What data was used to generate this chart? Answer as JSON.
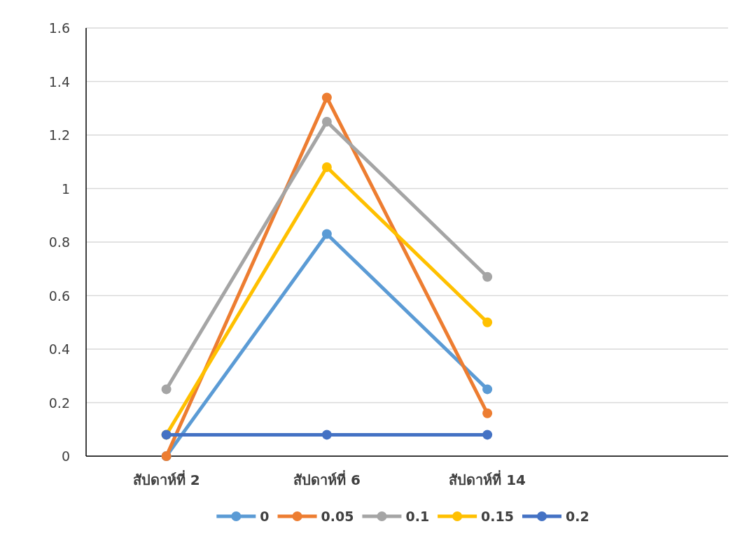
{
  "chart_data": {
    "type": "line",
    "categories": [
      "สัปดาห์ที่ 2",
      "สัปดาห์ที่ 6",
      "สัปดาห์ที่ 14",
      null
    ],
    "series": [
      {
        "name": "0",
        "color": "#5b9bd5",
        "values": [
          0,
          0.83,
          0.25,
          null
        ]
      },
      {
        "name": "0.05",
        "color": "#ed7d31",
        "values": [
          0,
          1.34,
          0.16,
          null
        ]
      },
      {
        "name": "0.1",
        "color": "#a5a5a5",
        "values": [
          0.25,
          1.25,
          0.67,
          null
        ]
      },
      {
        "name": "0.15",
        "color": "#ffc000",
        "values": [
          0.08,
          1.08,
          0.5,
          null
        ]
      },
      {
        "name": "0.2",
        "color": "#4472c4",
        "values": [
          0.08,
          0.08,
          0.08,
          null
        ]
      }
    ],
    "ylim": [
      0,
      1.6
    ],
    "yticks": [
      0,
      0.2,
      0.4,
      0.6,
      0.8,
      1,
      1.2,
      1.4,
      1.6
    ],
    "grid": "y",
    "legend": "bottom",
    "marker": "circle",
    "line_style": "solid"
  }
}
